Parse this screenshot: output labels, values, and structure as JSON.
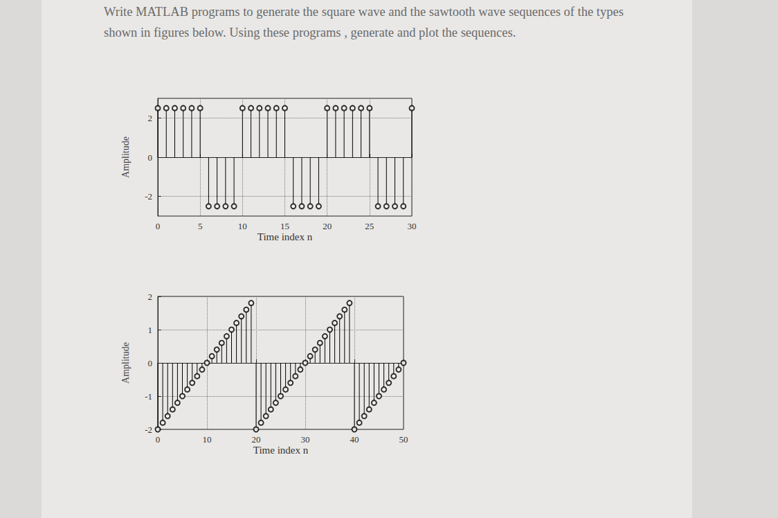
{
  "text": "Write MATLAB programs to generate the square wave and the sawtooth wave sequences of the types shown in figures below. Using these programs , generate and plot the sequences.",
  "chart_data": [
    {
      "type": "stem",
      "xlabel": "Time index n",
      "ylabel": "Amplitude",
      "color": "#000000",
      "marker": "circle",
      "grid": true,
      "x": [
        0,
        1,
        2,
        3,
        4,
        5,
        6,
        7,
        8,
        9,
        10,
        11,
        12,
        13,
        14,
        15,
        16,
        17,
        18,
        19,
        20,
        21,
        22,
        23,
        24,
        25,
        26,
        27,
        28,
        29,
        30
      ],
      "values": [
        2.5,
        2.5,
        2.5,
        2.5,
        2.5,
        2.5,
        -2.5,
        -2.5,
        -2.5,
        -2.5,
        2.5,
        2.5,
        2.5,
        2.5,
        2.5,
        2.5,
        -2.5,
        -2.5,
        -2.5,
        -2.5,
        2.5,
        2.5,
        2.5,
        2.5,
        2.5,
        2.5,
        -2.5,
        -2.5,
        -2.5,
        -2.5,
        2.5
      ],
      "xlim": [
        0,
        30
      ],
      "xticks": [
        0,
        5,
        10,
        15,
        20,
        25,
        30
      ],
      "ylim": [
        -3,
        3
      ],
      "yticks": [
        -2,
        0,
        2
      ]
    },
    {
      "type": "stem",
      "xlabel": "Time index n",
      "ylabel": "Amplitude",
      "color": "#000000",
      "marker": "circle",
      "grid": true,
      "x": [
        0,
        1,
        2,
        3,
        4,
        5,
        6,
        7,
        8,
        9,
        10,
        11,
        12,
        13,
        14,
        15,
        16,
        17,
        18,
        19,
        20,
        21,
        22,
        23,
        24,
        25,
        26,
        27,
        28,
        29,
        30,
        31,
        32,
        33,
        34,
        35,
        36,
        37,
        38,
        39,
        40,
        41,
        42,
        43,
        44,
        45,
        46,
        47,
        48,
        49,
        50
      ],
      "values": [
        -2,
        -1.8,
        -1.6,
        -1.4,
        -1.2,
        -1,
        -0.8,
        -0.6,
        -0.4,
        -0.2,
        0,
        0.2,
        0.4,
        0.6,
        0.8,
        1,
        1.2,
        1.4,
        1.6,
        1.8,
        -2,
        -1.8,
        -1.6,
        -1.4,
        -1.2,
        -1,
        -0.8,
        -0.6,
        -0.4,
        -0.2,
        0,
        0.2,
        0.4,
        0.6,
        0.8,
        1,
        1.2,
        1.4,
        1.6,
        1.8,
        -2,
        -1.8,
        -1.6,
        -1.4,
        -1.2,
        -1,
        -0.8,
        -0.6,
        -0.4,
        -0.2,
        0
      ],
      "xlim": [
        0,
        50
      ],
      "xticks": [
        0,
        10,
        20,
        30,
        40,
        50
      ],
      "ylim": [
        -2,
        2
      ],
      "yticks": [
        -2,
        -1,
        0,
        1,
        2
      ]
    }
  ]
}
